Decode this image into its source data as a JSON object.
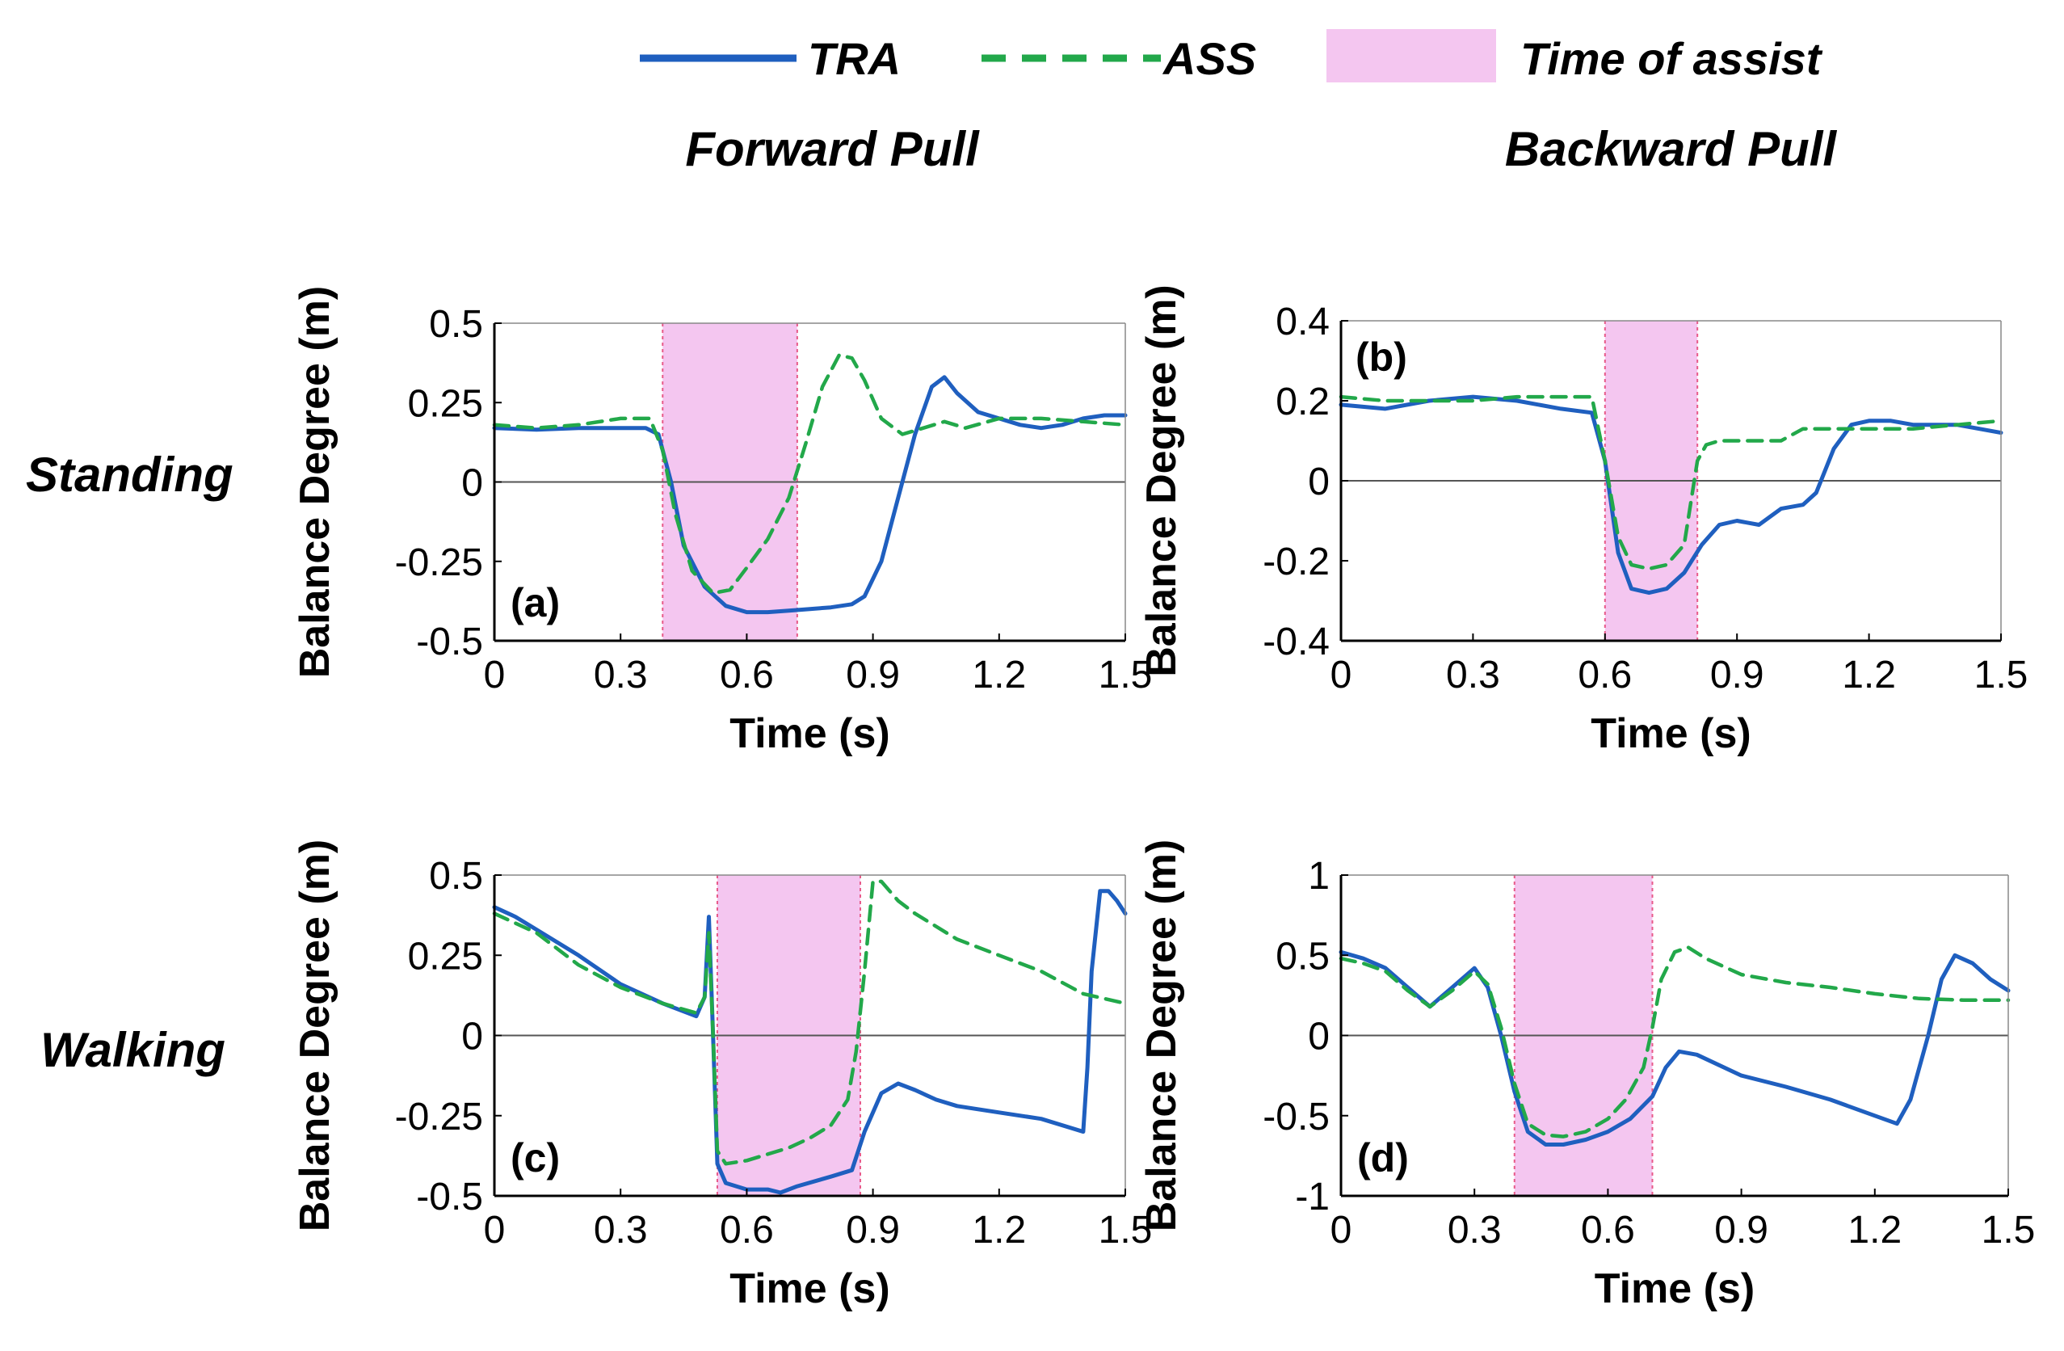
{
  "legend": {
    "tra": "TRA",
    "ass": "ASS",
    "assist": "Time of assist"
  },
  "columns": [
    "Forward Pull",
    "Backward Pull"
  ],
  "rows": [
    "Standing",
    "Walking"
  ],
  "colors": {
    "tra": "#1f5fbf",
    "ass": "#22a84a",
    "assist_fill": "#f4c6f0",
    "assist_edge": "#e85a8a",
    "axis": "#000000",
    "zero_line": "#555555"
  },
  "chart_data": [
    {
      "type": "line",
      "panel": "(a)",
      "xlabel": "Time (s)",
      "ylabel": "Balance Degree (m)",
      "xlim": [
        0,
        1.5
      ],
      "ylim": [
        -0.5,
        0.5
      ],
      "xticks": [
        0,
        0.3,
        0.6,
        0.9,
        1.2,
        1.5
      ],
      "xtick_labels": [
        "0",
        "0.3",
        "0.6",
        "0.9",
        "1.2",
        "1.5"
      ],
      "yticks": [
        -0.5,
        -0.25,
        0,
        0.25,
        0.5
      ],
      "ytick_labels": [
        "-0.5",
        "-0.25",
        "0",
        "0.25",
        "0.5"
      ],
      "assist": [
        0.4,
        0.72
      ],
      "series": [
        {
          "name": "TRA",
          "x": [
            0,
            0.1,
            0.2,
            0.3,
            0.36,
            0.39,
            0.42,
            0.45,
            0.5,
            0.55,
            0.6,
            0.65,
            0.7,
            0.75,
            0.8,
            0.85,
            0.88,
            0.92,
            0.96,
            1.0,
            1.04,
            1.07,
            1.1,
            1.15,
            1.2,
            1.25,
            1.3,
            1.35,
            1.4,
            1.45,
            1.5
          ],
          "y": [
            0.17,
            0.165,
            0.17,
            0.17,
            0.17,
            0.15,
            0.0,
            -0.2,
            -0.33,
            -0.39,
            -0.41,
            -0.41,
            -0.405,
            -0.4,
            -0.395,
            -0.385,
            -0.36,
            -0.25,
            -0.05,
            0.15,
            0.3,
            0.33,
            0.28,
            0.22,
            0.2,
            0.18,
            0.17,
            0.18,
            0.2,
            0.21,
            0.21
          ]
        },
        {
          "name": "ASS",
          "x": [
            0,
            0.1,
            0.2,
            0.3,
            0.37,
            0.4,
            0.43,
            0.47,
            0.52,
            0.56,
            0.6,
            0.65,
            0.7,
            0.74,
            0.78,
            0.82,
            0.85,
            0.88,
            0.92,
            0.97,
            1.02,
            1.07,
            1.12,
            1.2,
            1.3,
            1.4,
            1.5
          ],
          "y": [
            0.18,
            0.17,
            0.18,
            0.2,
            0.2,
            0.1,
            -0.1,
            -0.28,
            -0.35,
            -0.34,
            -0.27,
            -0.18,
            -0.05,
            0.12,
            0.3,
            0.4,
            0.39,
            0.32,
            0.2,
            0.15,
            0.17,
            0.19,
            0.17,
            0.2,
            0.2,
            0.19,
            0.18
          ]
        }
      ]
    },
    {
      "type": "line",
      "panel": "(b)",
      "xlabel": "Time (s)",
      "ylabel": "Balance Degree (m)",
      "xlim": [
        0,
        1.5
      ],
      "ylim": [
        -0.4,
        0.4
      ],
      "xticks": [
        0,
        0.3,
        0.6,
        0.9,
        1.2,
        1.5
      ],
      "xtick_labels": [
        "0",
        "0.3",
        "0.6",
        "0.9",
        "1.2",
        "1.5"
      ],
      "yticks": [
        -0.4,
        -0.2,
        0,
        0.2,
        0.4
      ],
      "ytick_labels": [
        "-0.4",
        "-0.2",
        "0",
        "0.2",
        "0.4"
      ],
      "assist": [
        0.6,
        0.81
      ],
      "series": [
        {
          "name": "TRA",
          "x": [
            0,
            0.1,
            0.2,
            0.3,
            0.4,
            0.5,
            0.57,
            0.6,
            0.63,
            0.66,
            0.7,
            0.74,
            0.78,
            0.82,
            0.86,
            0.9,
            0.95,
            1.0,
            1.05,
            1.08,
            1.12,
            1.16,
            1.2,
            1.25,
            1.3,
            1.4,
            1.5
          ],
          "y": [
            0.19,
            0.18,
            0.2,
            0.21,
            0.2,
            0.18,
            0.17,
            0.05,
            -0.18,
            -0.27,
            -0.28,
            -0.27,
            -0.23,
            -0.16,
            -0.11,
            -0.1,
            -0.11,
            -0.07,
            -0.06,
            -0.03,
            0.08,
            0.14,
            0.15,
            0.15,
            0.14,
            0.14,
            0.12
          ]
        },
        {
          "name": "ASS",
          "x": [
            0,
            0.1,
            0.2,
            0.3,
            0.4,
            0.5,
            0.57,
            0.6,
            0.63,
            0.66,
            0.7,
            0.74,
            0.78,
            0.81,
            0.83,
            0.86,
            0.9,
            0.95,
            1.0,
            1.05,
            1.1,
            1.2,
            1.3,
            1.4,
            1.5
          ],
          "y": [
            0.21,
            0.2,
            0.2,
            0.2,
            0.21,
            0.21,
            0.21,
            0.05,
            -0.14,
            -0.21,
            -0.22,
            -0.21,
            -0.16,
            0.05,
            0.09,
            0.1,
            0.1,
            0.1,
            0.1,
            0.13,
            0.13,
            0.13,
            0.13,
            0.14,
            0.15
          ]
        }
      ]
    },
    {
      "type": "line",
      "panel": "(c)",
      "xlabel": "Time (s)",
      "ylabel": "Balance Degree (m)",
      "xlim": [
        0,
        1.5
      ],
      "ylim": [
        -0.5,
        0.5
      ],
      "xticks": [
        0,
        0.3,
        0.6,
        0.9,
        1.2,
        1.5
      ],
      "xtick_labels": [
        "0",
        "0.3",
        "0.6",
        "0.9",
        "1.2",
        "1.5"
      ],
      "yticks": [
        -0.5,
        -0.25,
        0,
        0.25,
        0.5
      ],
      "ytick_labels": [
        "-0.5",
        "-0.25",
        "0",
        "0.25",
        "0.5"
      ],
      "assist": [
        0.53,
        0.87
      ],
      "series": [
        {
          "name": "TRA",
          "x": [
            0,
            0.05,
            0.1,
            0.2,
            0.3,
            0.4,
            0.48,
            0.5,
            0.51,
            0.52,
            0.53,
            0.55,
            0.6,
            0.65,
            0.68,
            0.72,
            0.8,
            0.85,
            0.88,
            0.92,
            0.96,
            1.0,
            1.05,
            1.1,
            1.2,
            1.3,
            1.4,
            1.41,
            1.42,
            1.44,
            1.46,
            1.48,
            1.5
          ],
          "y": [
            0.4,
            0.37,
            0.33,
            0.25,
            0.16,
            0.1,
            0.06,
            0.12,
            0.37,
            0.0,
            -0.4,
            -0.46,
            -0.48,
            -0.48,
            -0.49,
            -0.47,
            -0.44,
            -0.42,
            -0.3,
            -0.18,
            -0.15,
            -0.17,
            -0.2,
            -0.22,
            -0.24,
            -0.26,
            -0.3,
            -0.1,
            0.2,
            0.45,
            0.45,
            0.42,
            0.38
          ]
        },
        {
          "name": "ASS",
          "x": [
            0,
            0.05,
            0.1,
            0.2,
            0.3,
            0.4,
            0.48,
            0.5,
            0.51,
            0.52,
            0.53,
            0.55,
            0.6,
            0.65,
            0.7,
            0.75,
            0.8,
            0.84,
            0.86,
            0.88,
            0.9,
            0.92,
            0.96,
            1.0,
            1.1,
            1.2,
            1.3,
            1.4,
            1.5
          ],
          "y": [
            0.38,
            0.35,
            0.32,
            0.22,
            0.15,
            0.1,
            0.07,
            0.12,
            0.32,
            0.0,
            -0.36,
            -0.4,
            -0.39,
            -0.37,
            -0.35,
            -0.32,
            -0.28,
            -0.2,
            -0.05,
            0.2,
            0.48,
            0.48,
            0.42,
            0.38,
            0.3,
            0.25,
            0.2,
            0.13,
            0.1
          ]
        }
      ]
    },
    {
      "type": "line",
      "panel": "(d)",
      "xlabel": "Time (s)",
      "ylabel": "Balance Degree (m)",
      "xlim": [
        0,
        1.5
      ],
      "ylim": [
        -1,
        1
      ],
      "xticks": [
        0,
        0.3,
        0.6,
        0.9,
        1.2,
        1.5
      ],
      "xtick_labels": [
        "0",
        "0.3",
        "0.6",
        "0.9",
        "1.2",
        "1.5"
      ],
      "yticks": [
        -1,
        -0.5,
        0,
        0.5,
        1
      ],
      "ytick_labels": [
        "-1",
        "-0.5",
        "0",
        "0.5",
        "1"
      ],
      "assist": [
        0.39,
        0.7
      ],
      "series": [
        {
          "name": "TRA",
          "x": [
            0,
            0.05,
            0.1,
            0.15,
            0.2,
            0.25,
            0.3,
            0.33,
            0.36,
            0.39,
            0.42,
            0.46,
            0.5,
            0.55,
            0.6,
            0.65,
            0.7,
            0.73,
            0.76,
            0.8,
            0.9,
            1.0,
            1.1,
            1.2,
            1.25,
            1.28,
            1.32,
            1.35,
            1.38,
            1.42,
            1.46,
            1.5
          ],
          "y": [
            0.52,
            0.48,
            0.42,
            0.3,
            0.18,
            0.3,
            0.42,
            0.3,
            0.0,
            -0.35,
            -0.6,
            -0.68,
            -0.68,
            -0.65,
            -0.6,
            -0.52,
            -0.38,
            -0.2,
            -0.1,
            -0.12,
            -0.25,
            -0.32,
            -0.4,
            -0.5,
            -0.55,
            -0.4,
            0.0,
            0.35,
            0.5,
            0.45,
            0.35,
            0.28
          ]
        },
        {
          "name": "ASS",
          "x": [
            0,
            0.05,
            0.1,
            0.15,
            0.2,
            0.25,
            0.3,
            0.33,
            0.36,
            0.39,
            0.42,
            0.46,
            0.5,
            0.55,
            0.6,
            0.64,
            0.68,
            0.7,
            0.72,
            0.75,
            0.78,
            0.82,
            0.9,
            1.0,
            1.1,
            1.2,
            1.3,
            1.4,
            1.5
          ],
          "y": [
            0.48,
            0.45,
            0.4,
            0.28,
            0.18,
            0.28,
            0.4,
            0.32,
            0.05,
            -0.3,
            -0.55,
            -0.62,
            -0.63,
            -0.6,
            -0.52,
            -0.4,
            -0.2,
            0.05,
            0.35,
            0.52,
            0.55,
            0.48,
            0.38,
            0.33,
            0.3,
            0.26,
            0.23,
            0.22,
            0.22
          ]
        }
      ]
    }
  ]
}
